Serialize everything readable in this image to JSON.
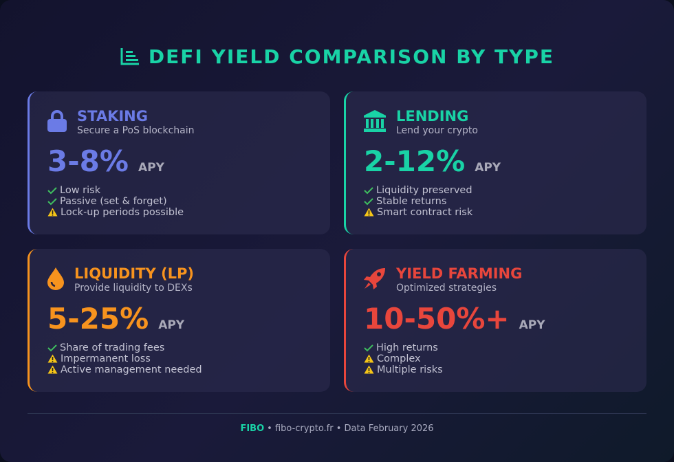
{
  "header": {
    "title": "DEFI YIELD COMPARISON BY TYPE"
  },
  "cards": [
    {
      "title": "STAKING",
      "subtitle": "Secure a PoS blockchain",
      "rate": "3-8%",
      "unit": "APY",
      "color": "#6b7be6",
      "items": [
        {
          "text": "Low risk",
          "status": "check"
        },
        {
          "text": "Passive (set & forget)",
          "status": "check"
        },
        {
          "text": "Lock-up periods possible",
          "status": "warning"
        }
      ]
    },
    {
      "title": "LENDING",
      "subtitle": "Lend your crypto",
      "rate": "2-12%",
      "unit": "APY",
      "color": "#19d3a6",
      "items": [
        {
          "text": "Liquidity preserved",
          "status": "check"
        },
        {
          "text": "Stable returns",
          "status": "check"
        },
        {
          "text": "Smart contract risk",
          "status": "warning"
        }
      ]
    },
    {
      "title": "LIQUIDITY (LP)",
      "subtitle": "Provide liquidity to DEXs",
      "rate": "5-25%",
      "unit": "APY",
      "color": "#f7931e",
      "items": [
        {
          "text": "Share of trading fees",
          "status": "check"
        },
        {
          "text": "Impermanent loss",
          "status": "warning"
        },
        {
          "text": "Active management needed",
          "status": "warning"
        }
      ]
    },
    {
      "title": "YIELD FARMING",
      "subtitle": "Optimized strategies",
      "rate": "10-50%+",
      "unit": "APY",
      "color": "#e8463c",
      "items": [
        {
          "text": "High returns",
          "status": "check"
        },
        {
          "text": "Complex",
          "status": "warning"
        },
        {
          "text": "Multiple risks",
          "status": "warning"
        }
      ]
    }
  ],
  "footer": {
    "brand": "FIBO",
    "text": "• fibo-crypto.fr • Data February 2026"
  }
}
